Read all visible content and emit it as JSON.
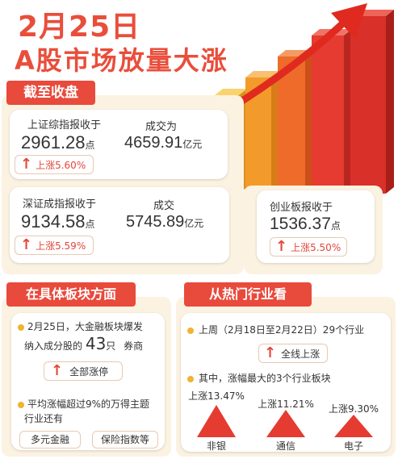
{
  "title": {
    "date": "2月25日",
    "headline": "A股市场放量大涨"
  },
  "close_section": {
    "banner": "截至收盘",
    "shanghai": {
      "label": "上证综指报收于",
      "value": "2961.28",
      "unit": "点",
      "change": "上涨5.60%",
      "turnover_label": "成交为",
      "turnover_value": "4659.91",
      "turnover_unit": "亿元"
    },
    "shenzhen": {
      "label": "深证成指报收于",
      "value": "9134.58",
      "unit": "点",
      "change": "上涨5.59%",
      "turnover_label": "成交",
      "turnover_value": "5745.89",
      "turnover_unit": "亿元"
    },
    "chinext": {
      "label": "创业板报收于",
      "value": "1536.37",
      "unit": "点",
      "change": "上涨5.50%"
    }
  },
  "sector_section": {
    "banner": "在具体板块方面",
    "item1_line1": "2月25日，大金融板块爆发",
    "item1_line2_prefix": "纳入成分股的",
    "item1_count": "43",
    "item1_count_unit": "只",
    "item1_line2_suffix": "券商",
    "item1_pill": "全部涨停",
    "item2_line1": "平均涨幅超过9%的万得主题",
    "item2_line2": "行业还有",
    "tags": [
      "多元金融",
      "保险指数等"
    ]
  },
  "industry_section": {
    "banner": "从热门行业看",
    "week_text": "上周（2月18日至2月22日）29个行业",
    "week_pill": "全线上涨",
    "top_text": "其中，涨幅最大的3个行业板块",
    "top3": [
      {
        "change": "上涨13.47%",
        "name": "非银"
      },
      {
        "change": "上涨11.21%",
        "name": "通信"
      },
      {
        "change": "上涨9.30%",
        "name": "电子"
      }
    ]
  },
  "colors": {
    "accent_red": "#e84a3c",
    "panel_bg": "#fbf2e2",
    "bar_red": "#e53b30",
    "bar_orange": "#f39b2a",
    "bar_green": "#8cc63f",
    "bullet": "#f2b232"
  }
}
